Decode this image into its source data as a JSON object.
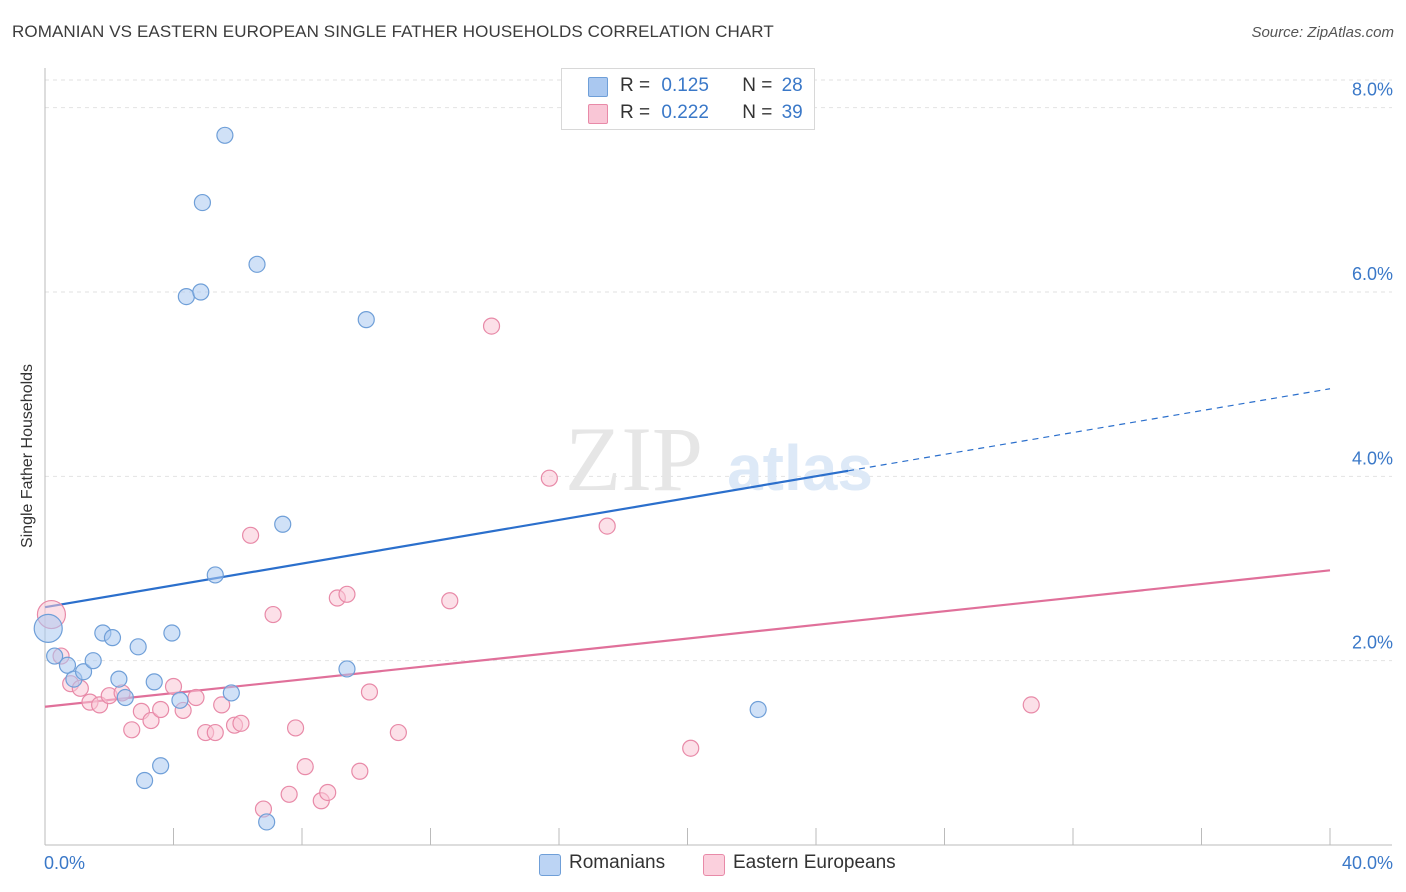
{
  "title": "ROMANIAN VS EASTERN EUROPEAN SINGLE FATHER HOUSEHOLDS CORRELATION CHART",
  "source": "Source: ZipAtlas.com",
  "watermark": {
    "zip": "ZIP",
    "atlas": "atlas"
  },
  "legend": {
    "rows": [
      {
        "r_label": "R =",
        "r_value": "0.125",
        "n_label": "N =",
        "n_value": "28",
        "color": "#aac8f0",
        "border": "#6f9fd8"
      },
      {
        "r_label": "R =",
        "r_value": "0.222",
        "n_label": "N =",
        "n_value": "39",
        "color": "#f9c6d6",
        "border": "#e88aa8"
      }
    ]
  },
  "bottom_legend": [
    {
      "label": "Romanians",
      "color": "#bcd4f4",
      "border": "#6f9fd8"
    },
    {
      "label": "Eastern Europeans",
      "color": "#fbd0dd",
      "border": "#e88aa8"
    }
  ],
  "chart_data": {
    "type": "scatter",
    "title": "ROMANIAN VS EASTERN EUROPEAN SINGLE FATHER HOUSEHOLDS CORRELATION CHART",
    "xlabel": "",
    "ylabel": "Single Father Households",
    "xlim": [
      0,
      40
    ],
    "ylim": [
      0,
      8.3
    ],
    "x_tick_labels": [
      "0.0%",
      "40.0%"
    ],
    "y_ticks": [
      2,
      4,
      6,
      8
    ],
    "y_tick_labels": [
      "2.0%",
      "4.0%",
      "6.0%",
      "8.0%"
    ],
    "grid": true,
    "series": [
      {
        "name": "Romanians",
        "color": "#6f9fd8",
        "fill": "#aac8f0",
        "line_color": "#2b6fcc",
        "points": [
          [
            0.1,
            2.35
          ],
          [
            0.3,
            2.05
          ],
          [
            0.7,
            1.95
          ],
          [
            0.9,
            1.8
          ],
          [
            1.2,
            1.88
          ],
          [
            1.5,
            2.0
          ],
          [
            1.8,
            2.3
          ],
          [
            2.1,
            2.25
          ],
          [
            2.3,
            1.8
          ],
          [
            2.5,
            1.6
          ],
          [
            2.9,
            2.15
          ],
          [
            3.1,
            0.7
          ],
          [
            3.4,
            1.77
          ],
          [
            3.6,
            0.86
          ],
          [
            3.95,
            2.3
          ],
          [
            4.2,
            1.57
          ],
          [
            4.4,
            5.95
          ],
          [
            4.85,
            6.0
          ],
          [
            4.9,
            6.97
          ],
          [
            5.3,
            2.93
          ],
          [
            5.6,
            7.7
          ],
          [
            5.8,
            1.65
          ],
          [
            6.6,
            6.3
          ],
          [
            6.9,
            0.25
          ],
          [
            7.4,
            3.48
          ],
          [
            9.4,
            1.91
          ],
          [
            10.0,
            5.7
          ],
          [
            22.2,
            1.47
          ]
        ],
        "trend": {
          "x": [
            0,
            25
          ],
          "y": [
            2.58,
            4.06
          ]
        },
        "trend_dashed": {
          "x": [
            25,
            40
          ],
          "y": [
            4.06,
            4.95
          ]
        }
      },
      {
        "name": "Eastern Europeans",
        "color": "#e88aa8",
        "fill": "#f9c6d6",
        "line_color": "#e0709a",
        "points": [
          [
            0.2,
            2.5
          ],
          [
            0.5,
            2.05
          ],
          [
            0.8,
            1.75
          ],
          [
            1.1,
            1.7
          ],
          [
            1.4,
            1.55
          ],
          [
            1.7,
            1.52
          ],
          [
            2.0,
            1.62
          ],
          [
            2.4,
            1.65
          ],
          [
            2.7,
            1.25
          ],
          [
            3.0,
            1.45
          ],
          [
            3.3,
            1.35
          ],
          [
            3.6,
            1.47
          ],
          [
            4.0,
            1.72
          ],
          [
            4.3,
            1.46
          ],
          [
            4.7,
            1.6
          ],
          [
            5.0,
            1.22
          ],
          [
            5.3,
            1.22
          ],
          [
            5.5,
            1.52
          ],
          [
            5.9,
            1.3
          ],
          [
            6.1,
            1.32
          ],
          [
            6.4,
            3.36
          ],
          [
            6.8,
            0.39
          ],
          [
            7.1,
            2.5
          ],
          [
            7.6,
            0.55
          ],
          [
            7.8,
            1.27
          ],
          [
            8.1,
            0.85
          ],
          [
            8.6,
            0.48
          ],
          [
            8.8,
            0.57
          ],
          [
            9.1,
            2.68
          ],
          [
            9.4,
            2.72
          ],
          [
            9.8,
            0.8
          ],
          [
            10.1,
            1.66
          ],
          [
            11.0,
            1.22
          ],
          [
            12.6,
            2.65
          ],
          [
            13.9,
            5.63
          ],
          [
            15.7,
            3.98
          ],
          [
            17.5,
            3.46
          ],
          [
            20.1,
            1.05
          ],
          [
            30.7,
            1.52
          ]
        ],
        "trend": {
          "x": [
            0,
            40
          ],
          "y": [
            1.5,
            2.98
          ]
        }
      }
    ]
  }
}
